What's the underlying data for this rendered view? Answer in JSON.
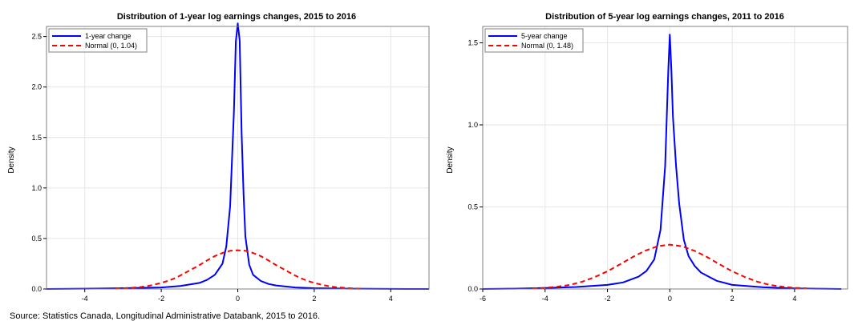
{
  "source_note": "Source: Statistics Canada, Longitudinal Administrative Databank, 2015 to 2016.",
  "chart_data": [
    {
      "type": "line",
      "title": "Distribution of 1-year log earnings changes, 2015 to 2016",
      "ylabel": "Density",
      "xlabel": "",
      "xlim": [
        -5,
        5
      ],
      "ylim": [
        0,
        2.6
      ],
      "xticks": [
        -4,
        -2,
        0,
        2,
        4
      ],
      "yticks": [
        0.0,
        0.5,
        1.0,
        1.5,
        2.0,
        2.5
      ],
      "grid": true,
      "legend_position": "top-left",
      "series": [
        {
          "name": "1-year change",
          "color": "#0000ff",
          "style": "solid",
          "x": [
            -5,
            -4,
            -3,
            -2,
            -1.5,
            -1,
            -0.8,
            -0.6,
            -0.4,
            -0.3,
            -0.2,
            -0.1,
            -0.05,
            0,
            0.05,
            0.1,
            0.15,
            0.2,
            0.3,
            0.4,
            0.6,
            0.8,
            1,
            1.5,
            2,
            3,
            4,
            5
          ],
          "y": [
            0,
            0.003,
            0.008,
            0.015,
            0.03,
            0.06,
            0.09,
            0.14,
            0.25,
            0.42,
            0.82,
            1.75,
            2.45,
            2.63,
            2.46,
            1.55,
            0.95,
            0.52,
            0.24,
            0.14,
            0.08,
            0.05,
            0.035,
            0.015,
            0.008,
            0.003,
            0.001,
            0
          ]
        },
        {
          "name": "Normal (0, 1.04)",
          "color": "#ff0000",
          "style": "dashed",
          "x": [
            -3.2,
            -3,
            -2.8,
            -2.6,
            -2.4,
            -2.2,
            -2,
            -1.8,
            -1.6,
            -1.4,
            -1.2,
            -1,
            -0.8,
            -0.6,
            -0.4,
            -0.2,
            0,
            0.2,
            0.4,
            0.6,
            0.8,
            1,
            1.2,
            1.4,
            1.6,
            1.8,
            2,
            2.2,
            2.4,
            2.6,
            2.8,
            3,
            3.2
          ],
          "y": [
            0.003,
            0.006,
            0.011,
            0.017,
            0.026,
            0.041,
            0.06,
            0.083,
            0.114,
            0.154,
            0.196,
            0.237,
            0.283,
            0.326,
            0.357,
            0.378,
            0.384,
            0.378,
            0.357,
            0.326,
            0.283,
            0.237,
            0.196,
            0.154,
            0.114,
            0.083,
            0.06,
            0.041,
            0.026,
            0.017,
            0.011,
            0.006,
            0.003
          ]
        }
      ]
    },
    {
      "type": "line",
      "title": "Distribution of 5-year log earnings changes, 2011 to 2016",
      "ylabel": "Density",
      "xlabel": "",
      "xlim": [
        -6,
        5.7
      ],
      "ylim": [
        0,
        1.6
      ],
      "xticks": [
        -6,
        -4,
        -2,
        0,
        2,
        4
      ],
      "yticks": [
        0.0,
        0.5,
        1.0,
        1.5
      ],
      "grid": true,
      "legend_position": "top-left",
      "series": [
        {
          "name": "5-year change",
          "color": "#0000ff",
          "style": "solid",
          "x": [
            -6,
            -5,
            -4,
            -3,
            -2,
            -1.5,
            -1,
            -0.75,
            -0.5,
            -0.3,
            -0.15,
            -0.05,
            0,
            0.05,
            0.1,
            0.2,
            0.3,
            0.45,
            0.6,
            0.8,
            1,
            1.5,
            2,
            3,
            4,
            5,
            5.5
          ],
          "y": [
            0,
            0.002,
            0.006,
            0.012,
            0.025,
            0.04,
            0.075,
            0.11,
            0.18,
            0.36,
            0.75,
            1.33,
            1.55,
            1.33,
            1.05,
            0.75,
            0.52,
            0.3,
            0.2,
            0.14,
            0.1,
            0.05,
            0.025,
            0.01,
            0.004,
            0.001,
            0
          ]
        },
        {
          "name": "Normal (0, 1.48)",
          "color": "#ff0000",
          "style": "dashed",
          "x": [
            -4.4,
            -4,
            -3.6,
            -3.2,
            -2.8,
            -2.4,
            -2,
            -1.6,
            -1.2,
            -0.8,
            -0.4,
            0,
            0.4,
            0.8,
            1.2,
            1.6,
            2,
            2.4,
            2.8,
            3.2,
            3.6,
            4,
            4.4
          ],
          "y": [
            0.004,
            0.007,
            0.014,
            0.025,
            0.045,
            0.073,
            0.108,
            0.15,
            0.194,
            0.232,
            0.26,
            0.27,
            0.26,
            0.232,
            0.194,
            0.15,
            0.108,
            0.073,
            0.045,
            0.025,
            0.014,
            0.007,
            0.004
          ]
        }
      ]
    }
  ]
}
